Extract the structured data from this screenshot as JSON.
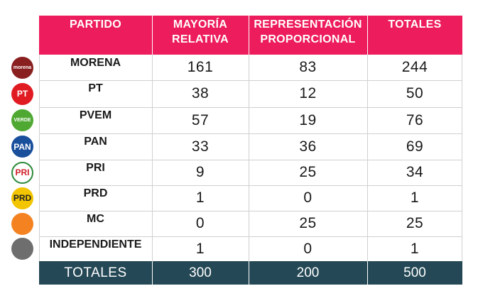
{
  "headers": [
    "PARTIDO",
    "MAYORÍA\nRELATIVA",
    "REPRESENTACIÓN\nPROPORCIONAL",
    "TOTALES"
  ],
  "rows": [
    {
      "party": "MORENA",
      "mayoria": "161",
      "rp": "83",
      "total": "244",
      "logo_text": "morena",
      "logo_color": "#8a1f1f",
      "logo_icon": "morena-logo-icon"
    },
    {
      "party": "PT",
      "mayoria": "38",
      "rp": "12",
      "total": "50",
      "logo_text": "PT",
      "logo_color": "#e01b22",
      "logo_icon": "pt-logo-icon"
    },
    {
      "party": "PVEM",
      "mayoria": "57",
      "rp": "19",
      "total": "76",
      "logo_text": "VERDE",
      "logo_color": "#4ea832",
      "logo_icon": "pvem-logo-icon"
    },
    {
      "party": "PAN",
      "mayoria": "33",
      "rp": "36",
      "total": "69",
      "logo_text": "PAN",
      "logo_color": "#1a4f9c",
      "logo_icon": "pan-logo-icon"
    },
    {
      "party": "PRI",
      "mayoria": "9",
      "rp": "25",
      "total": "34",
      "logo_text": "PRI",
      "logo_color": "#ffffff",
      "logo_icon": "pri-logo-icon"
    },
    {
      "party": "PRD",
      "mayoria": "1",
      "rp": "0",
      "total": "1",
      "logo_text": "PRD",
      "logo_color": "#f2c500",
      "logo_icon": "prd-logo-icon"
    },
    {
      "party": "MC",
      "mayoria": "0",
      "rp": "25",
      "total": "25",
      "logo_text": "",
      "logo_color": "#f58220",
      "logo_icon": "mc-logo-icon"
    },
    {
      "party": "INDEPENDIENTE",
      "mayoria": "1",
      "rp": "0",
      "total": "1",
      "logo_text": "",
      "logo_color": "#6e6e6e",
      "logo_icon": "independiente-logo-icon"
    }
  ],
  "totals": {
    "label": "TOTALES",
    "mayoria": "300",
    "rp": "200",
    "total": "500"
  },
  "colors": {
    "header": "#ed1c5c",
    "totals_row": "#244855"
  }
}
